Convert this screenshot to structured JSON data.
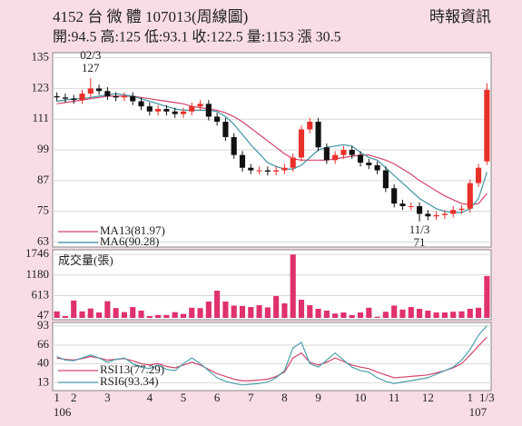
{
  "chart_data": [
    {
      "type": "candlestick",
      "title": "4152 台 微 體 107013(周線圖)",
      "subtitle": "開:94.5 高:125 低:93.1 收:122.5 量:1153 漲 30.5",
      "source": "時報資訊",
      "categories": [
        "1",
        null,
        "2",
        null,
        null,
        null,
        "3",
        null,
        null,
        null,
        null,
        "4",
        null,
        null,
        null,
        "5",
        null,
        null,
        null,
        "6",
        null,
        null,
        null,
        "7",
        null,
        null,
        null,
        "8",
        null,
        null,
        null,
        "9",
        null,
        null,
        null,
        null,
        "10",
        null,
        null,
        null,
        "11",
        null,
        null,
        null,
        "12",
        null,
        null,
        null,
        null,
        "1",
        null,
        "1/3"
      ],
      "year_start": "106",
      "year_end": "107",
      "open": [
        120,
        119.5,
        119,
        118.5,
        121,
        123,
        122,
        120,
        119.5,
        120,
        118,
        116,
        114,
        115,
        114,
        113,
        114,
        116,
        117,
        112,
        110,
        104,
        97,
        92,
        91,
        91,
        90.5,
        91,
        92,
        96,
        107,
        110,
        100,
        95,
        97,
        99,
        97,
        94,
        93,
        91,
        84,
        78,
        77,
        77,
        74,
        73,
        73.5,
        74,
        75.5,
        76,
        86,
        94.5
      ],
      "high": [
        121.5,
        121,
        120.5,
        122.5,
        127,
        124.5,
        123.5,
        121.5,
        121.5,
        121.5,
        119.5,
        117.5,
        116.5,
        116.5,
        115.5,
        115.5,
        117.5,
        118.5,
        118.5,
        113.5,
        111.5,
        105.5,
        98.5,
        93.5,
        92.5,
        92.5,
        92.5,
        93.5,
        97.5,
        108.5,
        111.5,
        111.5,
        101.5,
        98.5,
        100.5,
        100.5,
        98.5,
        95.5,
        94.5,
        92.5,
        85.5,
        79.5,
        78.5,
        78.5,
        75.5,
        75,
        75.5,
        77,
        77.5,
        87.5,
        93.5,
        125
      ],
      "low": [
        118,
        117.5,
        117,
        117,
        119.5,
        120.5,
        118.5,
        118,
        118,
        116.5,
        114.5,
        112.5,
        112.5,
        112.5,
        111.5,
        111.5,
        112.5,
        114.5,
        110.5,
        108.5,
        102.5,
        95.5,
        90.5,
        89.5,
        89.5,
        89,
        89,
        89.5,
        90.5,
        94.5,
        105.5,
        98.5,
        93.5,
        93.5,
        95.5,
        95.5,
        92.5,
        91.5,
        89.5,
        82.5,
        76.5,
        75.5,
        75.5,
        71,
        71.5,
        71.5,
        72,
        72.5,
        74,
        74.5,
        84.5,
        93.1
      ],
      "close": [
        119.5,
        119,
        118.5,
        121,
        123,
        122,
        120,
        119.5,
        120,
        118,
        116,
        114,
        115,
        114,
        113,
        114,
        116,
        117,
        112,
        110,
        104,
        97,
        92,
        91,
        91,
        90.5,
        91,
        92,
        96,
        107,
        110,
        100,
        95,
        97,
        99,
        97,
        94,
        93,
        91,
        84,
        78,
        77,
        77,
        74,
        73,
        73.5,
        74,
        75.5,
        76,
        86,
        92,
        122.5
      ],
      "up_color": "#e8302a",
      "down_color": "#111111",
      "ylim": [
        61,
        137
      ],
      "yticks": [
        135,
        123,
        111,
        99,
        87,
        75,
        63
      ],
      "annotations": [
        {
          "label": "02/3",
          "value": 127
        },
        {
          "label": "11/3",
          "value": 71
        }
      ],
      "series": [
        {
          "name": "MA13(81.97)",
          "color": "#d2456a",
          "values": [
            117,
            117.5,
            118,
            118.5,
            119,
            119.5,
            120,
            120,
            120,
            120,
            119.5,
            119,
            118.5,
            118,
            117.5,
            117,
            116,
            115.5,
            115,
            114.5,
            113.5,
            112,
            110,
            107.5,
            105,
            102.5,
            100,
            97.5,
            95.5,
            95,
            95,
            95,
            95,
            95.5,
            96,
            96.5,
            97,
            97,
            96,
            95,
            93.5,
            91.5,
            89.5,
            87,
            85,
            83,
            81,
            79.5,
            78,
            77.5,
            78,
            81.97
          ]
        },
        {
          "name": "MA6(90.28)",
          "color": "#3f93a3",
          "values": [
            118,
            118.5,
            119,
            119,
            119.5,
            120,
            120.5,
            121,
            120.5,
            120,
            119,
            118,
            117,
            116,
            115,
            114.5,
            114.5,
            114.5,
            114.5,
            114,
            112,
            109,
            105,
            101,
            97.5,
            94,
            92.5,
            91.5,
            91.5,
            93,
            96,
            99,
            100,
            100.5,
            101,
            100.5,
            98,
            96,
            95,
            92,
            89,
            86,
            83,
            80,
            78,
            76,
            75,
            74.5,
            74.5,
            76,
            80,
            90.28
          ]
        }
      ]
    },
    {
      "type": "bar",
      "title": "成交量(張)",
      "color": "#e0306e",
      "values": [
        180,
        50,
        480,
        180,
        260,
        150,
        460,
        270,
        160,
        300,
        200,
        50,
        80,
        80,
        160,
        110,
        280,
        270,
        450,
        750,
        450,
        340,
        330,
        300,
        350,
        290,
        600,
        400,
        1746,
        500,
        350,
        250,
        200,
        120,
        150,
        80,
        150,
        280,
        30,
        170,
        340,
        230,
        300,
        250,
        200,
        150,
        150,
        170,
        180,
        250,
        280,
        1153
      ],
      "ylim": [
        0,
        1800
      ],
      "yticks": [
        1746,
        1180,
        613,
        47
      ]
    },
    {
      "type": "line",
      "ylim": [
        2,
        98
      ],
      "yticks": [
        93,
        66,
        40,
        13
      ],
      "series": [
        {
          "name": "RSI13(77.29)",
          "color": "#d2456a",
          "values": [
            48,
            46,
            45,
            47,
            50,
            48,
            45,
            46,
            47,
            44,
            40,
            38,
            40,
            36,
            34,
            38,
            42,
            38,
            32,
            26,
            22,
            18,
            16,
            16,
            17,
            18,
            22,
            28,
            48,
            55,
            42,
            38,
            42,
            48,
            43,
            38,
            35,
            33,
            28,
            24,
            20,
            21,
            22,
            23,
            24,
            27,
            30,
            34,
            40,
            52,
            65,
            77.29
          ]
        },
        {
          "name": "RSI6(93.34)",
          "color": "#4aa0ad",
          "values": [
            50,
            45,
            44,
            48,
            52,
            48,
            42,
            46,
            48,
            40,
            35,
            33,
            38,
            32,
            30,
            40,
            48,
            40,
            30,
            20,
            15,
            12,
            10,
            11,
            12,
            14,
            20,
            30,
            62,
            70,
            40,
            35,
            45,
            55,
            45,
            35,
            30,
            28,
            20,
            15,
            12,
            14,
            16,
            18,
            20,
            25,
            30,
            35,
            45,
            60,
            80,
            93.34
          ]
        }
      ]
    }
  ]
}
